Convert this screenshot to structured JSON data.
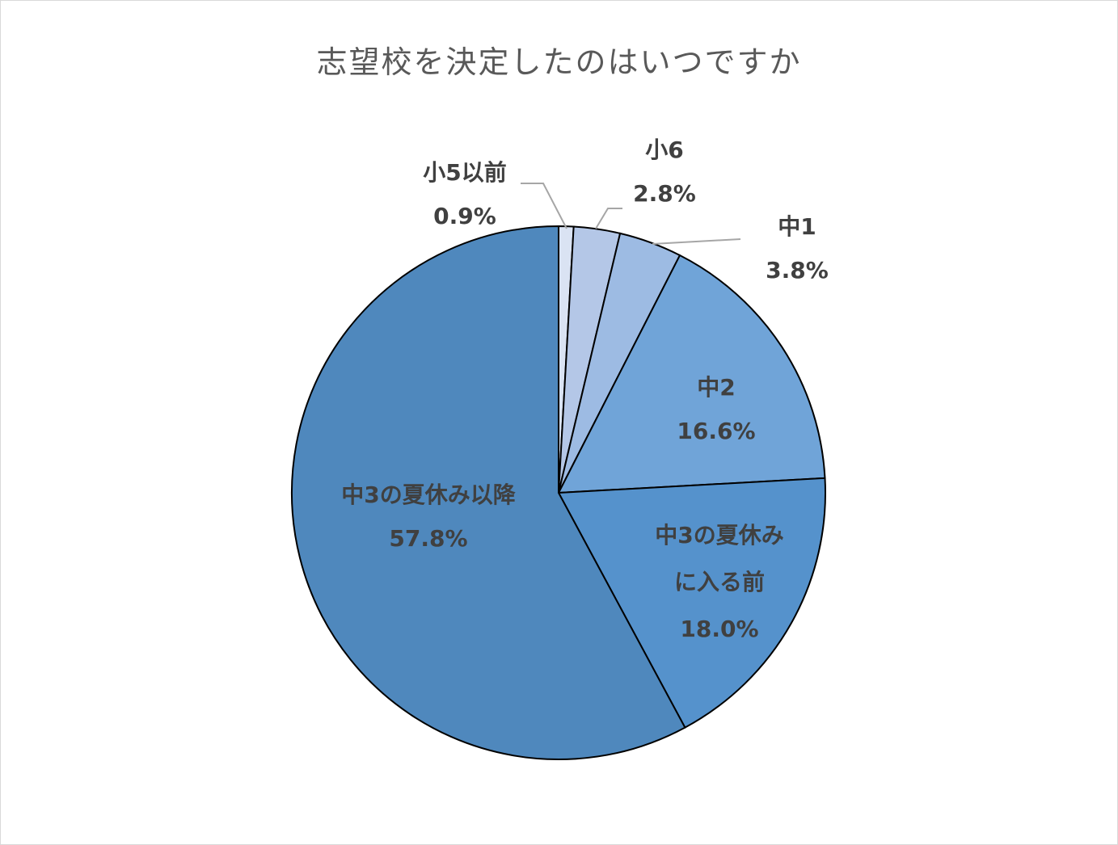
{
  "chart_data": {
    "type": "pie",
    "title": "志望校を決定したのはいつですか",
    "slices": [
      {
        "label": [
          "小5以前"
        ],
        "value_label": "0.9%",
        "value": 0.9,
        "color": "#dae3f3"
      },
      {
        "label": [
          "小6"
        ],
        "value_label": "2.8%",
        "value": 2.8,
        "color": "#b4c7e7"
      },
      {
        "label": [
          "中1"
        ],
        "value_label": "3.8%",
        "value": 3.8,
        "color": "#9dbbe3"
      },
      {
        "label": [
          "中2"
        ],
        "value_label": "16.6%",
        "value": 16.6,
        "color": "#70a4d8"
      },
      {
        "label": [
          "中3の夏休み",
          "に入る前"
        ],
        "value_label": "18.0%",
        "value": 18.0,
        "color": "#5592cc"
      },
      {
        "label": [
          "中3の夏休み以降"
        ],
        "value_label": "57.8%",
        "value": 57.8,
        "color": "#4f88bd"
      }
    ],
    "start_angle_deg": 0,
    "direction": "clockwise"
  }
}
